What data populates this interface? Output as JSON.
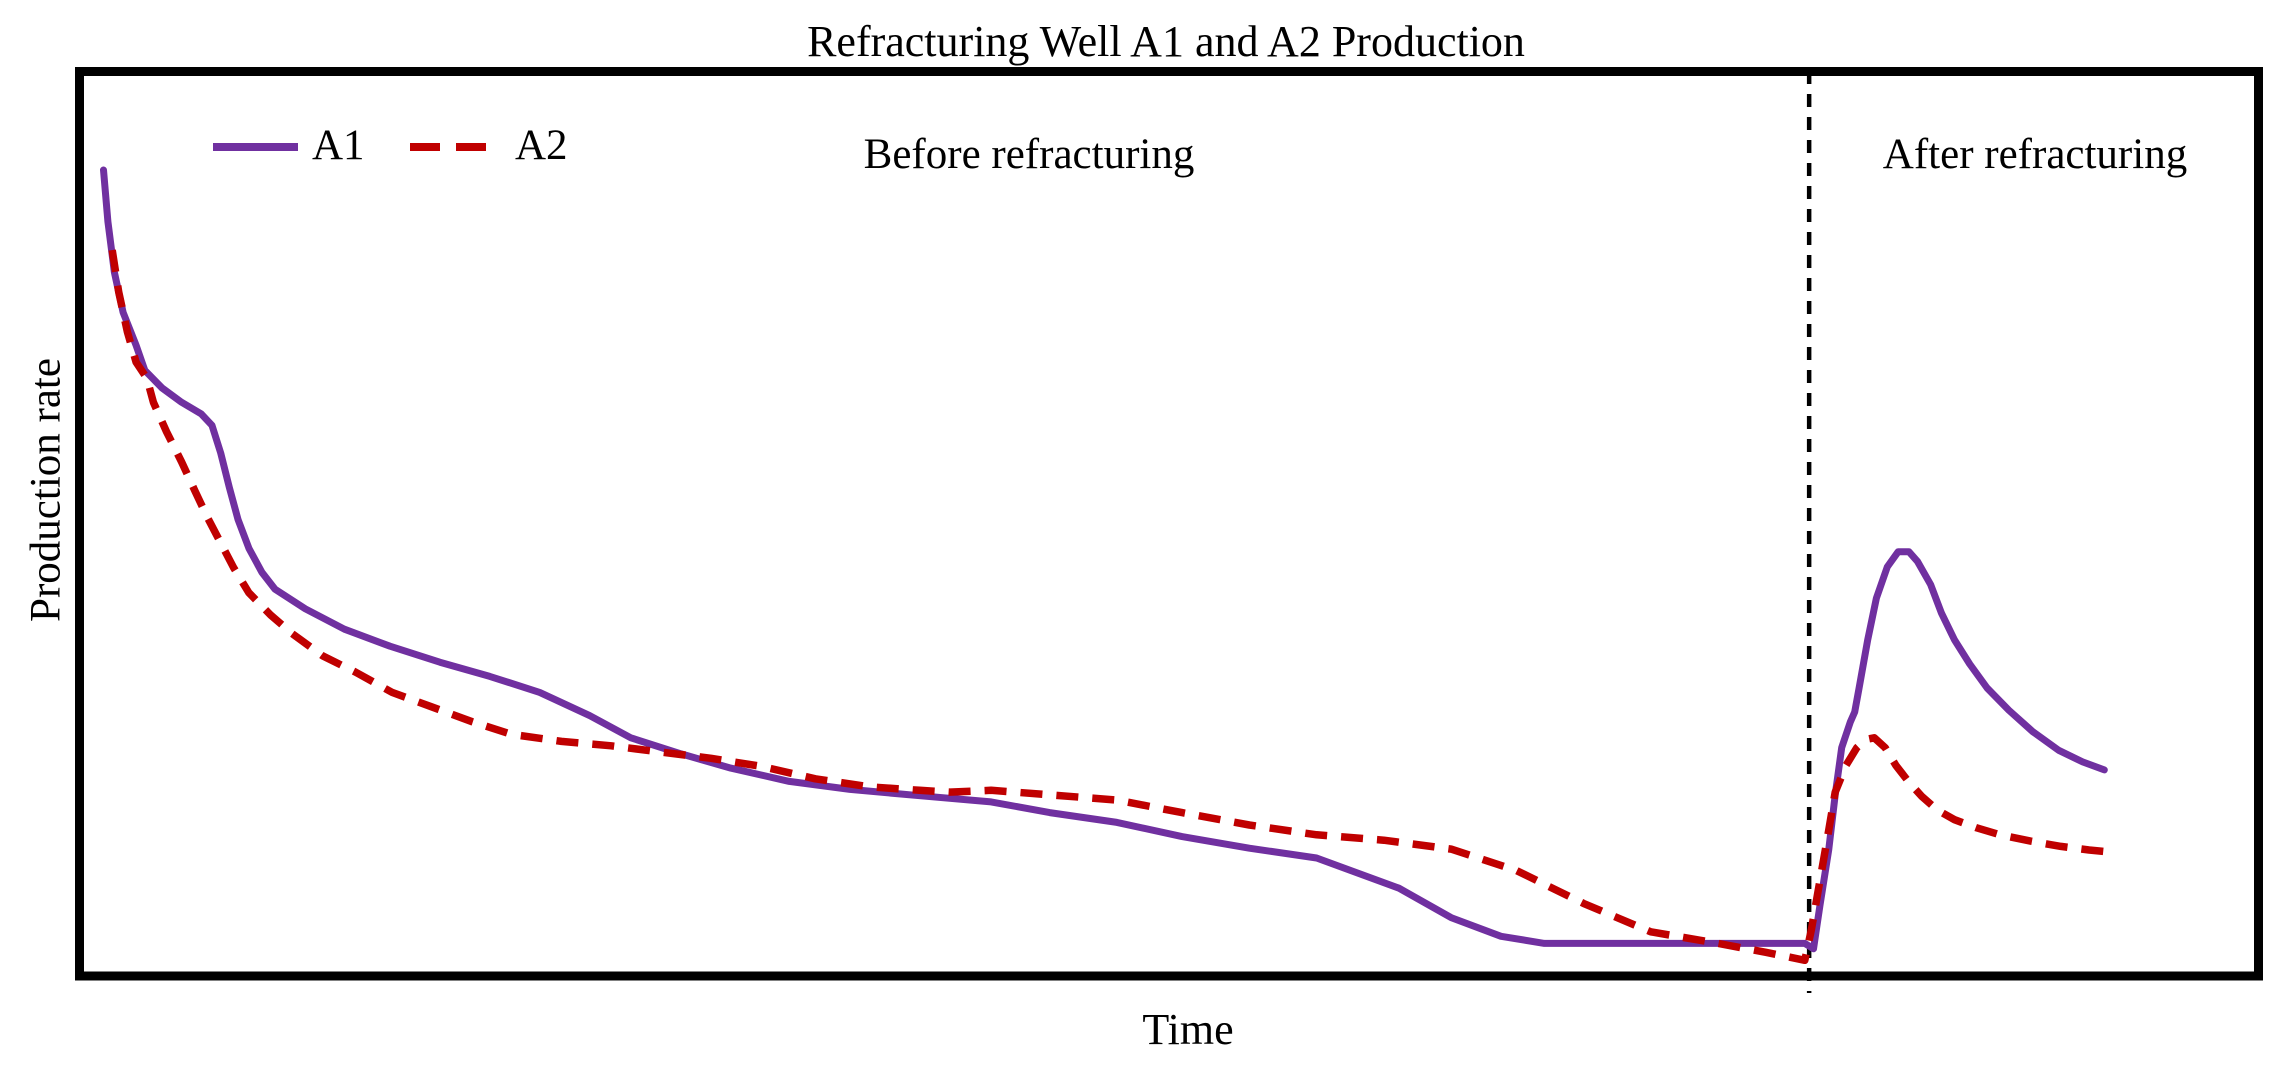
{
  "chart_data": {
    "type": "line",
    "title": "Refracturing Well A1 and A2 Production",
    "xlabel": "Time",
    "ylabel": "Production rate",
    "xlim": [
      0,
      100
    ],
    "ylim": [
      0,
      100
    ],
    "grid": false,
    "axis_ticks_visible": false,
    "legend_position": "top-left-inside",
    "frame_color": "#000000",
    "refracture_divider": {
      "x": 79.5,
      "style": "dashed",
      "color": "#000000"
    },
    "annotations": [
      {
        "text": "Before refracturing",
        "region": "left-of-divider"
      },
      {
        "text": "After refracturing",
        "region": "right-of-divider"
      }
    ],
    "series": [
      {
        "name": "A1",
        "color": "#7030A0",
        "style": "solid",
        "points": [
          [
            0.9,
            90.0
          ],
          [
            1.1,
            84.2
          ],
          [
            1.4,
            78.5
          ],
          [
            1.8,
            74.0
          ],
          [
            2.4,
            70.3
          ],
          [
            2.8,
            67.5
          ],
          [
            3.6,
            65.5
          ],
          [
            4.5,
            63.9
          ],
          [
            5.4,
            62.6
          ],
          [
            5.9,
            61.3
          ],
          [
            6.3,
            58.2
          ],
          [
            6.7,
            54.3
          ],
          [
            7.1,
            50.7
          ],
          [
            7.6,
            47.5
          ],
          [
            8.2,
            44.8
          ],
          [
            8.8,
            42.9
          ],
          [
            10.2,
            40.7
          ],
          [
            12.0,
            38.4
          ],
          [
            14.1,
            36.5
          ],
          [
            16.4,
            34.7
          ],
          [
            18.7,
            33.1
          ],
          [
            21.0,
            31.3
          ],
          [
            23.3,
            28.7
          ],
          [
            25.2,
            26.2
          ],
          [
            27.5,
            24.4
          ],
          [
            29.8,
            22.8
          ],
          [
            32.5,
            21.3
          ],
          [
            35.3,
            20.4
          ],
          [
            38.5,
            19.7
          ],
          [
            41.8,
            19.0
          ],
          [
            44.5,
            17.8
          ],
          [
            47.6,
            16.7
          ],
          [
            50.6,
            15.1
          ],
          [
            53.7,
            13.8
          ],
          [
            56.8,
            12.7
          ],
          [
            60.6,
            9.3
          ],
          [
            63.0,
            6.0
          ],
          [
            65.3,
            3.9
          ],
          [
            67.3,
            3.1
          ],
          [
            72.0,
            3.1
          ],
          [
            76.0,
            3.1
          ],
          [
            79.3,
            3.1
          ],
          [
            79.7,
            2.5
          ],
          [
            80.0,
            7.4
          ],
          [
            80.4,
            13.6
          ],
          [
            80.7,
            19.8
          ],
          [
            81.0,
            25.1
          ],
          [
            81.4,
            28.0
          ],
          [
            81.6,
            29.1
          ],
          [
            81.8,
            31.8
          ],
          [
            82.2,
            37.2
          ],
          [
            82.6,
            41.9
          ],
          [
            83.1,
            45.4
          ],
          [
            83.6,
            47.1
          ],
          [
            84.1,
            47.1
          ],
          [
            84.5,
            46.0
          ],
          [
            85.1,
            43.4
          ],
          [
            85.6,
            40.2
          ],
          [
            86.2,
            37.2
          ],
          [
            86.9,
            34.5
          ],
          [
            87.7,
            31.8
          ],
          [
            88.7,
            29.3
          ],
          [
            89.8,
            26.9
          ],
          [
            91.0,
            24.8
          ],
          [
            92.1,
            23.5
          ],
          [
            93.1,
            22.6
          ]
        ]
      },
      {
        "name": "A2",
        "color": "#C00000",
        "style": "dashed",
        "points": [
          [
            1.3,
            81.0
          ],
          [
            1.6,
            76.3
          ],
          [
            2.0,
            71.8
          ],
          [
            2.4,
            68.4
          ],
          [
            2.9,
            66.6
          ],
          [
            3.2,
            63.9
          ],
          [
            3.8,
            60.6
          ],
          [
            4.5,
            57.2
          ],
          [
            5.1,
            54.0
          ],
          [
            5.7,
            50.9
          ],
          [
            6.3,
            48.1
          ],
          [
            6.9,
            45.3
          ],
          [
            7.6,
            42.5
          ],
          [
            8.6,
            40.0
          ],
          [
            9.6,
            37.9
          ],
          [
            11.0,
            35.4
          ],
          [
            12.5,
            33.6
          ],
          [
            14.2,
            31.3
          ],
          [
            16.0,
            29.7
          ],
          [
            17.9,
            28.0
          ],
          [
            19.7,
            26.6
          ],
          [
            22.0,
            25.8
          ],
          [
            24.3,
            25.3
          ],
          [
            26.6,
            24.6
          ],
          [
            28.9,
            23.9
          ],
          [
            31.2,
            23.0
          ],
          [
            33.7,
            21.6
          ],
          [
            36.2,
            20.7
          ],
          [
            38.5,
            20.3
          ],
          [
            39.9,
            20.1
          ],
          [
            41.8,
            20.3
          ],
          [
            44.5,
            19.8
          ],
          [
            47.6,
            19.2
          ],
          [
            50.6,
            17.8
          ],
          [
            53.7,
            16.4
          ],
          [
            56.8,
            15.3
          ],
          [
            59.9,
            14.7
          ],
          [
            63.0,
            13.7
          ],
          [
            66.0,
            11.3
          ],
          [
            69.1,
            7.6
          ],
          [
            72.2,
            4.4
          ],
          [
            75.3,
            3.1
          ],
          [
            77.5,
            2.1
          ],
          [
            79.3,
            1.2
          ],
          [
            79.6,
            4.6
          ],
          [
            80.0,
            10.2
          ],
          [
            80.4,
            15.8
          ],
          [
            80.7,
            20.1
          ],
          [
            81.2,
            23.1
          ],
          [
            81.7,
            25.1
          ],
          [
            82.1,
            26.0
          ],
          [
            82.5,
            26.2
          ],
          [
            83.0,
            25.1
          ],
          [
            83.5,
            23.1
          ],
          [
            84.1,
            21.2
          ],
          [
            84.7,
            19.6
          ],
          [
            85.4,
            18.1
          ],
          [
            86.2,
            17.0
          ],
          [
            87.2,
            16.1
          ],
          [
            88.3,
            15.3
          ],
          [
            89.7,
            14.6
          ],
          [
            91.1,
            14.0
          ],
          [
            92.4,
            13.6
          ],
          [
            93.6,
            13.3
          ]
        ]
      }
    ]
  }
}
